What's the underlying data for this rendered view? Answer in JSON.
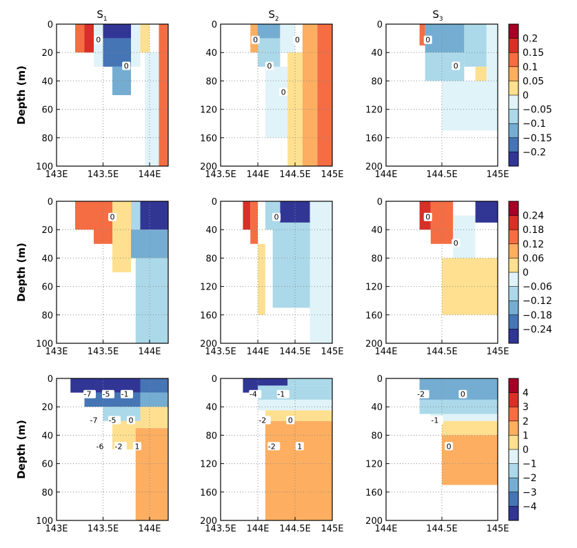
{
  "figure": {
    "column_titles": [
      "S",
      "S",
      "S"
    ],
    "column_subscripts": [
      "1",
      "2",
      "3"
    ],
    "ylabel": "Depth (m)"
  },
  "colormaps": [
    {
      "levels": [
        "0.2",
        "0.15",
        "0.1",
        "0.05",
        "0",
        "−0.05",
        "−0.1",
        "−0.15",
        "−0.2"
      ],
      "colors": [
        "#a50026",
        "#d73027",
        "#f46d43",
        "#fdae61",
        "#fee090",
        "#e0f3f8",
        "#abd9e9",
        "#74add1",
        "#4575b4",
        "#313695"
      ]
    },
    {
      "levels": [
        "0.24",
        "0.18",
        "0.12",
        "0.06",
        "0",
        "−0.06",
        "−0.12",
        "−0.18",
        "−0.24"
      ],
      "colors": [
        "#a50026",
        "#d73027",
        "#f46d43",
        "#fdae61",
        "#fee090",
        "#e0f3f8",
        "#abd9e9",
        "#74add1",
        "#4575b4",
        "#313695"
      ]
    },
    {
      "levels": [
        "4",
        "3",
        "2",
        "1",
        "0",
        "−1",
        "−2",
        "−3",
        "−4"
      ],
      "colors": [
        "#a50026",
        "#d73027",
        "#f46d43",
        "#fdae61",
        "#fee090",
        "#e0f3f8",
        "#abd9e9",
        "#74add1",
        "#4575b4",
        "#313695"
      ]
    }
  ],
  "chart_data": [
    {
      "type": "heatmap",
      "row": 1,
      "col": 1,
      "title": "S₁",
      "xlabels": [
        "143E",
        "143.5E",
        "144E"
      ],
      "xlim": [
        143.0,
        144.2
      ],
      "ylabels": [
        "0",
        "20",
        "40",
        "60",
        "80",
        "100"
      ],
      "ylim": [
        0,
        100
      ],
      "ylabel": "Depth (m)",
      "contour_labels": [
        "0",
        "0"
      ],
      "cells": [
        {
          "x": [
            143.2,
            143.3
          ],
          "y": [
            0,
            20
          ],
          "v": 2
        },
        {
          "x": [
            143.3,
            143.4
          ],
          "y": [
            0,
            20
          ],
          "v": 1
        },
        {
          "x": [
            143.4,
            143.5
          ],
          "y": [
            0,
            30
          ],
          "v": 5
        },
        {
          "x": [
            143.5,
            143.8
          ],
          "y": [
            0,
            10
          ],
          "v": 9
        },
        {
          "x": [
            143.5,
            143.8
          ],
          "y": [
            10,
            30
          ],
          "v": 8
        },
        {
          "x": [
            143.6,
            143.8
          ],
          "y": [
            30,
            50
          ],
          "v": 7
        },
        {
          "x": [
            143.8,
            143.9
          ],
          "y": [
            0,
            30
          ],
          "v": 5
        },
        {
          "x": [
            143.9,
            144.0
          ],
          "y": [
            0,
            20
          ],
          "v": 4
        },
        {
          "x": [
            143.95,
            144.1
          ],
          "y": [
            20,
            100
          ],
          "v": 5
        },
        {
          "x": [
            144.1,
            144.2
          ],
          "y": [
            0,
            100
          ],
          "v": 2
        }
      ]
    },
    {
      "type": "heatmap",
      "row": 1,
      "col": 2,
      "title": "S₂",
      "xlabels": [
        "143.5E",
        "144E",
        "144.5E",
        "145E"
      ],
      "xlim": [
        143.5,
        145.0
      ],
      "ylabels": [
        "0",
        "40",
        "80",
        "120",
        "160",
        "200"
      ],
      "ylim": [
        0,
        200
      ],
      "ylabel": "Depth (m)",
      "contour_labels": [
        "0",
        "0",
        "0",
        "0"
      ],
      "cells": [
        {
          "x": [
            143.9,
            144.0
          ],
          "y": [
            0,
            40
          ],
          "v": 3
        },
        {
          "x": [
            144.0,
            144.3
          ],
          "y": [
            0,
            20
          ],
          "v": 7
        },
        {
          "x": [
            144.0,
            144.3
          ],
          "y": [
            20,
            60
          ],
          "v": 6
        },
        {
          "x": [
            144.1,
            144.4
          ],
          "y": [
            60,
            160
          ],
          "v": 5
        },
        {
          "x": [
            144.3,
            144.5
          ],
          "y": [
            0,
            40
          ],
          "v": 5
        },
        {
          "x": [
            144.4,
            144.6
          ],
          "y": [
            40,
            200
          ],
          "v": 4
        },
        {
          "x": [
            144.6,
            144.8
          ],
          "y": [
            0,
            200
          ],
          "v": 3
        },
        {
          "x": [
            144.8,
            145.0
          ],
          "y": [
            0,
            200
          ],
          "v": 2
        }
      ]
    },
    {
      "type": "heatmap",
      "row": 1,
      "col": 3,
      "title": "S₃",
      "xlabels": [
        "144E",
        "144.5E",
        "145E"
      ],
      "xlim": [
        144.0,
        145.0
      ],
      "ylabels": [
        "0",
        "40",
        "80",
        "120",
        "160",
        "200"
      ],
      "ylim": [
        0,
        200
      ],
      "ylabel": "Depth (m)",
      "contour_labels": [
        "0",
        "0"
      ],
      "cells": [
        {
          "x": [
            144.3,
            144.35
          ],
          "y": [
            0,
            30
          ],
          "v": 2
        },
        {
          "x": [
            144.35,
            144.7
          ],
          "y": [
            0,
            40
          ],
          "v": 7
        },
        {
          "x": [
            144.35,
            144.7
          ],
          "y": [
            40,
            80
          ],
          "v": 6
        },
        {
          "x": [
            144.5,
            144.9
          ],
          "y": [
            80,
            150
          ],
          "v": 5
        },
        {
          "x": [
            144.7,
            144.9
          ],
          "y": [
            0,
            60
          ],
          "v": 6
        },
        {
          "x": [
            144.8,
            144.9
          ],
          "y": [
            60,
            80
          ],
          "v": 4
        },
        {
          "x": [
            144.9,
            145.0
          ],
          "y": [
            0,
            150
          ],
          "v": 5
        }
      ]
    },
    {
      "type": "heatmap",
      "row": 2,
      "col": 1,
      "title": "",
      "xlabels": [
        "143E",
        "143.5E",
        "144E"
      ],
      "xlim": [
        143.0,
        144.2
      ],
      "ylabels": [
        "0",
        "20",
        "40",
        "60",
        "80",
        "100"
      ],
      "ylim": [
        0,
        100
      ],
      "ylabel": "Depth (m)",
      "contour_labels": [
        "0"
      ],
      "cells": [
        {
          "x": [
            143.2,
            143.4
          ],
          "y": [
            0,
            20
          ],
          "v": 2
        },
        {
          "x": [
            143.4,
            143.6
          ],
          "y": [
            0,
            30
          ],
          "v": 2
        },
        {
          "x": [
            143.6,
            143.8
          ],
          "y": [
            0,
            50
          ],
          "v": 4
        },
        {
          "x": [
            143.8,
            143.9
          ],
          "y": [
            0,
            20
          ],
          "v": 6
        },
        {
          "x": [
            143.9,
            144.2
          ],
          "y": [
            0,
            20
          ],
          "v": 9
        },
        {
          "x": [
            143.8,
            144.2
          ],
          "y": [
            20,
            40
          ],
          "v": 7
        },
        {
          "x": [
            143.85,
            144.2
          ],
          "y": [
            40,
            100
          ],
          "v": 6
        }
      ]
    },
    {
      "type": "heatmap",
      "row": 2,
      "col": 2,
      "title": "",
      "xlabels": [
        "143.5E",
        "144E",
        "144.5E",
        "145E"
      ],
      "xlim": [
        143.5,
        145.0
      ],
      "ylabels": [
        "0",
        "40",
        "80",
        "120",
        "160",
        "200"
      ],
      "ylim": [
        0,
        200
      ],
      "ylabel": "Depth (m)",
      "contour_labels": [
        "0"
      ],
      "cells": [
        {
          "x": [
            143.8,
            143.9
          ],
          "y": [
            0,
            40
          ],
          "v": 1
        },
        {
          "x": [
            143.9,
            144.0
          ],
          "y": [
            0,
            60
          ],
          "v": 2
        },
        {
          "x": [
            144.0,
            144.1
          ],
          "y": [
            60,
            160
          ],
          "v": 4
        },
        {
          "x": [
            144.1,
            144.3
          ],
          "y": [
            0,
            40
          ],
          "v": 6
        },
        {
          "x": [
            144.3,
            144.7
          ],
          "y": [
            0,
            30
          ],
          "v": 9
        },
        {
          "x": [
            144.2,
            144.8
          ],
          "y": [
            30,
            80
          ],
          "v": 6
        },
        {
          "x": [
            144.2,
            144.7
          ],
          "y": [
            80,
            150
          ],
          "v": 6
        },
        {
          "x": [
            144.7,
            145.0
          ],
          "y": [
            0,
            200
          ],
          "v": 5
        }
      ]
    },
    {
      "type": "heatmap",
      "row": 2,
      "col": 3,
      "title": "",
      "xlabels": [
        "144E",
        "144.5E",
        "145E"
      ],
      "xlim": [
        144.0,
        145.0
      ],
      "ylabels": [
        "0",
        "40",
        "80",
        "120",
        "160",
        "200"
      ],
      "ylim": [
        0,
        200
      ],
      "ylabel": "Depth (m)",
      "contour_labels": [
        "0",
        "0"
      ],
      "cells": [
        {
          "x": [
            144.3,
            144.4
          ],
          "y": [
            0,
            40
          ],
          "v": 1
        },
        {
          "x": [
            144.4,
            144.6
          ],
          "y": [
            0,
            60
          ],
          "v": 2
        },
        {
          "x": [
            144.6,
            144.8
          ],
          "y": [
            20,
            80
          ],
          "v": 5
        },
        {
          "x": [
            144.8,
            145.0
          ],
          "y": [
            0,
            30
          ],
          "v": 9
        },
        {
          "x": [
            144.5,
            145.0
          ],
          "y": [
            80,
            160
          ],
          "v": 4
        }
      ]
    },
    {
      "type": "heatmap",
      "row": 3,
      "col": 1,
      "title": "",
      "xlabels": [
        "143E",
        "143.5E",
        "144E"
      ],
      "xlim": [
        143.0,
        144.2
      ],
      "ylabels": [
        "0",
        "20",
        "40",
        "60",
        "80",
        "100"
      ],
      "ylim": [
        0,
        100
      ],
      "ylabel": "Depth (m)",
      "contour_labels": [
        "-7",
        "-7",
        "-6",
        "-5",
        "-5",
        "-2",
        "-1",
        "0",
        "1"
      ],
      "cells": [
        {
          "x": [
            143.15,
            143.9
          ],
          "y": [
            0,
            10
          ],
          "v": 9
        },
        {
          "x": [
            143.9,
            144.2
          ],
          "y": [
            0,
            10
          ],
          "v": 8
        },
        {
          "x": [
            143.3,
            143.9
          ],
          "y": [
            10,
            20
          ],
          "v": 8
        },
        {
          "x": [
            143.9,
            144.2
          ],
          "y": [
            10,
            20
          ],
          "v": 7
        },
        {
          "x": [
            143.5,
            143.9
          ],
          "y": [
            20,
            30
          ],
          "v": 6
        },
        {
          "x": [
            143.6,
            143.9
          ],
          "y": [
            30,
            50
          ],
          "v": 4
        },
        {
          "x": [
            143.9,
            144.2
          ],
          "y": [
            20,
            35
          ],
          "v": 4
        },
        {
          "x": [
            143.85,
            144.2
          ],
          "y": [
            35,
            100
          ],
          "v": 3
        }
      ]
    },
    {
      "type": "heatmap",
      "row": 3,
      "col": 2,
      "title": "",
      "xlabels": [
        "143.5E",
        "144E",
        "144.5E",
        "145E"
      ],
      "xlim": [
        143.5,
        145.0
      ],
      "ylabels": [
        "0",
        "40",
        "80",
        "120",
        "160",
        "200"
      ],
      "ylim": [
        0,
        200
      ],
      "ylabel": "Depth (m)",
      "contour_labels": [
        "-4",
        "-2",
        "-2",
        "-1",
        "0",
        "1"
      ],
      "cells": [
        {
          "x": [
            143.8,
            144.4
          ],
          "y": [
            0,
            20
          ],
          "v": 9
        },
        {
          "x": [
            144.4,
            145.0
          ],
          "y": [
            0,
            10
          ],
          "v": 6
        },
        {
          "x": [
            144.0,
            145.0
          ],
          "y": [
            10,
            30
          ],
          "v": 6
        },
        {
          "x": [
            144.0,
            145.0
          ],
          "y": [
            30,
            45
          ],
          "v": 5
        },
        {
          "x": [
            144.1,
            145.0
          ],
          "y": [
            45,
            60
          ],
          "v": 4
        },
        {
          "x": [
            144.1,
            145.0
          ],
          "y": [
            60,
            200
          ],
          "v": 3
        }
      ]
    },
    {
      "type": "heatmap",
      "row": 3,
      "col": 3,
      "title": "",
      "xlabels": [
        "144E",
        "144.5E",
        "145E"
      ],
      "xlim": [
        144.0,
        145.0
      ],
      "ylabels": [
        "0",
        "40",
        "80",
        "120",
        "160",
        "200"
      ],
      "ylim": [
        0,
        200
      ],
      "ylabel": "Depth (m)",
      "contour_labels": [
        "-2",
        "-1",
        "0",
        "0"
      ],
      "cells": [
        {
          "x": [
            144.3,
            145.0
          ],
          "y": [
            0,
            30
          ],
          "v": 7
        },
        {
          "x": [
            144.3,
            145.0
          ],
          "y": [
            30,
            50
          ],
          "v": 6
        },
        {
          "x": [
            144.4,
            145.0
          ],
          "y": [
            50,
            60
          ],
          "v": 5
        },
        {
          "x": [
            144.5,
            145.0
          ],
          "y": [
            60,
            80
          ],
          "v": 4
        },
        {
          "x": [
            144.5,
            145.0
          ],
          "y": [
            80,
            150
          ],
          "v": 3
        }
      ]
    }
  ]
}
